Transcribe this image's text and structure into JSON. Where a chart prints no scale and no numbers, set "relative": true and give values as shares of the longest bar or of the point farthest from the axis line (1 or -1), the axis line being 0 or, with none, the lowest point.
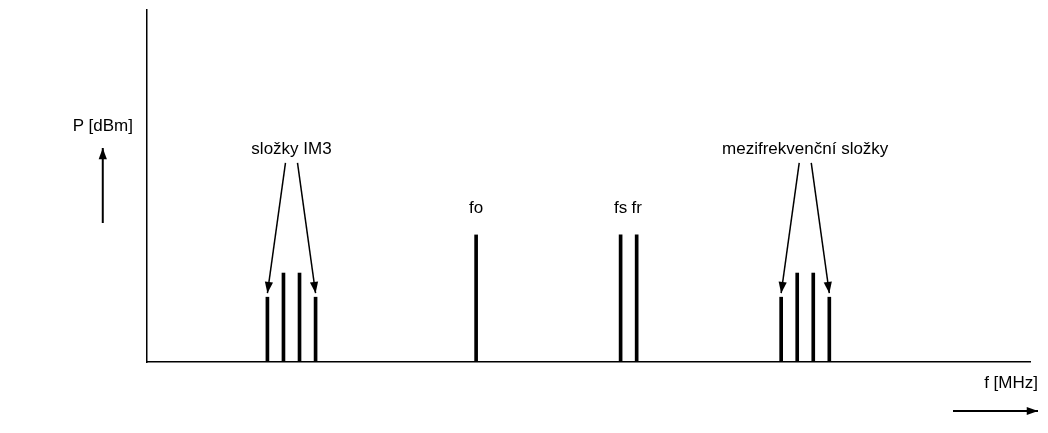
{
  "chart_data": {
    "type": "bar",
    "relative": true,
    "xlabel": "f [MHz]",
    "ylabel": "P [dBm]",
    "color": "#000000",
    "grid": false,
    "legend": false,
    "categories": [
      null,
      null,
      null,
      null,
      null,
      null,
      null,
      null,
      null,
      null,
      null,
      null,
      null,
      null,
      null,
      null,
      null,
      null,
      null,
      null,
      "fo",
      null,
      null,
      null,
      null,
      null,
      null,
      null,
      null,
      "fs",
      "fr",
      null,
      null,
      null,
      null,
      null,
      null,
      null,
      null,
      null,
      null,
      null,
      null,
      null,
      null,
      null,
      null,
      null,
      null,
      null,
      null,
      null,
      null,
      null,
      null
    ],
    "values": [
      null,
      null,
      null,
      null,
      null,
      null,
      null,
      0.51,
      0.7,
      0.7,
      0.51,
      null,
      null,
      null,
      null,
      null,
      null,
      null,
      null,
      null,
      1,
      null,
      null,
      null,
      null,
      null,
      null,
      null,
      null,
      1,
      1,
      null,
      null,
      null,
      null,
      null,
      null,
      null,
      null,
      0.51,
      0.7,
      0.7,
      0.51,
      null,
      null,
      null,
      null,
      null,
      null,
      null,
      null,
      null,
      null,
      null,
      null
    ],
    "annotations": [
      "složky IM3",
      "mezifrekvenční složky"
    ]
  }
}
